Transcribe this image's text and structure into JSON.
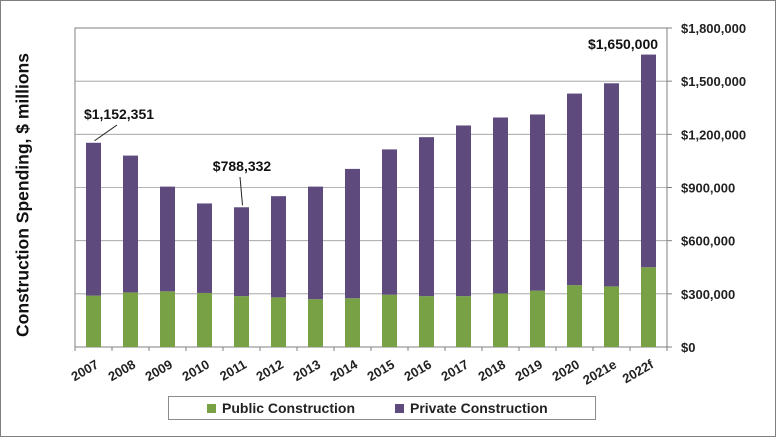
{
  "chart_data": {
    "type": "bar",
    "stacked": true,
    "categories": [
      "2007",
      "2008",
      "2009",
      "2010",
      "2011",
      "2012",
      "2013",
      "2014",
      "2015",
      "2016",
      "2017",
      "2018",
      "2019",
      "2020",
      "2021e",
      "2022f"
    ],
    "series": [
      {
        "name": "Public Construction",
        "color": "#77a144",
        "values": [
          290000,
          308000,
          314000,
          305000,
          287000,
          280000,
          270000,
          275000,
          295000,
          287000,
          287000,
          302000,
          318000,
          349000,
          342000,
          450000
        ]
      },
      {
        "name": "Private Construction",
        "color": "#5e4a7d",
        "values": [
          862351,
          772000,
          591000,
          505000,
          501332,
          571000,
          635000,
          730000,
          820000,
          897000,
          963000,
          993000,
          994000,
          1081000,
          1146000,
          1200000
        ]
      }
    ],
    "totals_labeled": [
      {
        "category": "2007",
        "label": "$1,152,351"
      },
      {
        "category": "2011",
        "label": "$788,332"
      },
      {
        "category": "2022f",
        "label": "$1,650,000"
      }
    ],
    "ylabel": "Construction Spending, $ millions",
    "ylim": [
      0,
      1800000
    ],
    "y_ticks": [
      0,
      300000,
      600000,
      900000,
      1200000,
      1500000,
      1800000
    ],
    "y_tick_labels": [
      "$0",
      "$300,000",
      "$600,000",
      "$900,000",
      "$1,200,000",
      "$1,500,000",
      "$1,800,000"
    ],
    "y_axis_side": "right",
    "grid": true,
    "legend_position": "bottom"
  }
}
